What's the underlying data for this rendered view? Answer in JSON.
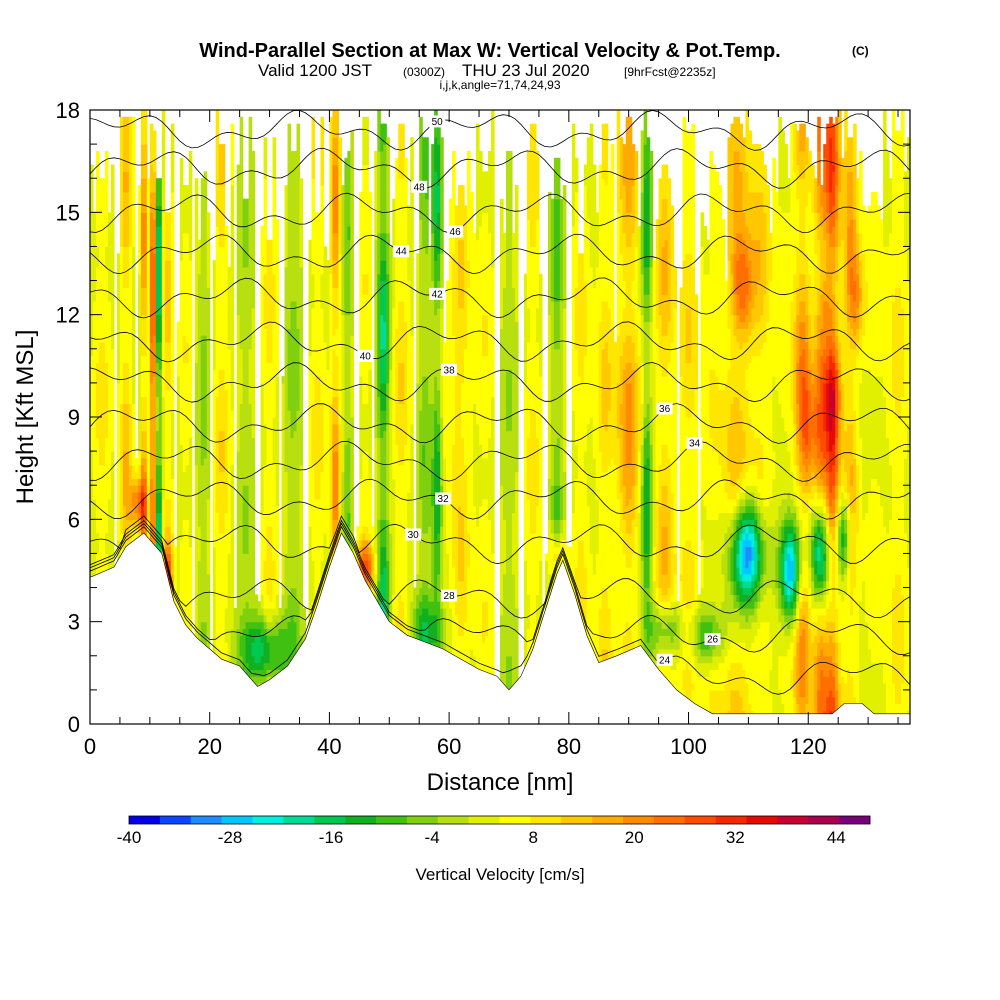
{
  "header": {
    "title": "Wind-Parallel Section at Max W: Vertical Velocity & Pot.Temp.",
    "title_mark": "(C)",
    "valid_prefix": "Valid 1200 JST",
    "valid_utc": "(0300Z)",
    "valid_date": "THU 23 Jul 2020",
    "forecast": "[9hrFcst@2235z]",
    "indices": "i,j,k,angle=71,74,24,93"
  },
  "chart_data": {
    "type": "heatmap",
    "xlabel": "Distance [nm]",
    "ylabel": "Height [Kft MSL]",
    "xlim": [
      0,
      137
    ],
    "ylim": [
      0,
      18
    ],
    "xticks": [
      0,
      20,
      40,
      60,
      80,
      100,
      120
    ],
    "yticks": [
      0,
      3,
      6,
      9,
      12,
      15,
      18
    ],
    "colorbar": {
      "label": "Vertical Velocity [cm/s]",
      "min": -40,
      "max": 48,
      "step": 4,
      "tick_labels": [
        "-40",
        "-28",
        "-16",
        "-4",
        "8",
        "20",
        "32",
        "44"
      ],
      "colors": [
        "#0000e6",
        "#0a46ff",
        "#1e8cff",
        "#00c8ff",
        "#00f0e0",
        "#00dc96",
        "#00c850",
        "#10b020",
        "#40c010",
        "#80d010",
        "#b8e010",
        "#e0f000",
        "#ffff00",
        "#ffe600",
        "#ffc800",
        "#ffaa00",
        "#ff8c00",
        "#ff6e00",
        "#ff4b00",
        "#f52800",
        "#e60a00",
        "#c80032",
        "#aa0050",
        "#780078"
      ]
    },
    "terrain_kft": [
      {
        "x": 0,
        "h": 4.3
      },
      {
        "x": 4,
        "h": 4.6
      },
      {
        "x": 6,
        "h": 5.2
      },
      {
        "x": 9,
        "h": 5.6
      },
      {
        "x": 12,
        "h": 5.0
      },
      {
        "x": 14,
        "h": 3.6
      },
      {
        "x": 16,
        "h": 2.9
      },
      {
        "x": 18,
        "h": 2.5
      },
      {
        "x": 20,
        "h": 2.2
      },
      {
        "x": 22,
        "h": 1.9
      },
      {
        "x": 25,
        "h": 1.7
      },
      {
        "x": 28,
        "h": 1.1
      },
      {
        "x": 30,
        "h": 1.3
      },
      {
        "x": 33,
        "h": 1.7
      },
      {
        "x": 36,
        "h": 2.5
      },
      {
        "x": 38,
        "h": 3.5
      },
      {
        "x": 40,
        "h": 4.6
      },
      {
        "x": 42,
        "h": 5.6
      },
      {
        "x": 44,
        "h": 5.0
      },
      {
        "x": 46,
        "h": 4.2
      },
      {
        "x": 48,
        "h": 3.6
      },
      {
        "x": 50,
        "h": 3.0
      },
      {
        "x": 53,
        "h": 2.6
      },
      {
        "x": 56,
        "h": 2.4
      },
      {
        "x": 59,
        "h": 2.2
      },
      {
        "x": 62,
        "h": 1.9
      },
      {
        "x": 65,
        "h": 1.6
      },
      {
        "x": 68,
        "h": 1.4
      },
      {
        "x": 70,
        "h": 1.0
      },
      {
        "x": 72,
        "h": 1.4
      },
      {
        "x": 74,
        "h": 2.2
      },
      {
        "x": 76,
        "h": 3.3
      },
      {
        "x": 78,
        "h": 4.4
      },
      {
        "x": 79,
        "h": 4.8
      },
      {
        "x": 81,
        "h": 3.8
      },
      {
        "x": 83,
        "h": 2.6
      },
      {
        "x": 85,
        "h": 1.8
      },
      {
        "x": 88,
        "h": 2.0
      },
      {
        "x": 92,
        "h": 2.3
      },
      {
        "x": 95,
        "h": 1.6
      },
      {
        "x": 98,
        "h": 1.0
      },
      {
        "x": 101,
        "h": 0.6
      },
      {
        "x": 104,
        "h": 0.3
      },
      {
        "x": 110,
        "h": 0.3
      },
      {
        "x": 115,
        "h": 0.3
      },
      {
        "x": 120,
        "h": 0.3
      },
      {
        "x": 124,
        "h": 0.3
      },
      {
        "x": 126,
        "h": 0.6
      },
      {
        "x": 129,
        "h": 0.6
      },
      {
        "x": 131,
        "h": 0.3
      },
      {
        "x": 137,
        "h": 0.3
      }
    ],
    "theta_contours": [
      {
        "label": "24",
        "h": 1.4,
        "label_x": 96
      },
      {
        "label": "26",
        "h": 2.6,
        "label_x": 104
      },
      {
        "label": "28",
        "h": 3.7,
        "label_x": 60
      },
      {
        "label": "30",
        "h": 5.3,
        "label_x": 54
      },
      {
        "label": "32",
        "h": 6.6,
        "label_x": 59
      },
      {
        "label": "34",
        "h": 7.7,
        "label_x": 101
      },
      {
        "label": "36",
        "h": 8.8,
        "label_x": 96
      },
      {
        "label": "38",
        "h": 10.0,
        "label_x": 60
      },
      {
        "label": "40",
        "h": 11.2,
        "label_x": 46
      },
      {
        "label": "42",
        "h": 12.5,
        "label_x": 58
      },
      {
        "label": "44",
        "h": 13.8,
        "label_x": 52
      },
      {
        "label": "46",
        "h": 15.0,
        "label_x": 61
      },
      {
        "label": "48",
        "h": 16.3,
        "label_x": 55
      },
      {
        "label": "50",
        "h": 17.4,
        "label_x": 58
      }
    ]
  }
}
